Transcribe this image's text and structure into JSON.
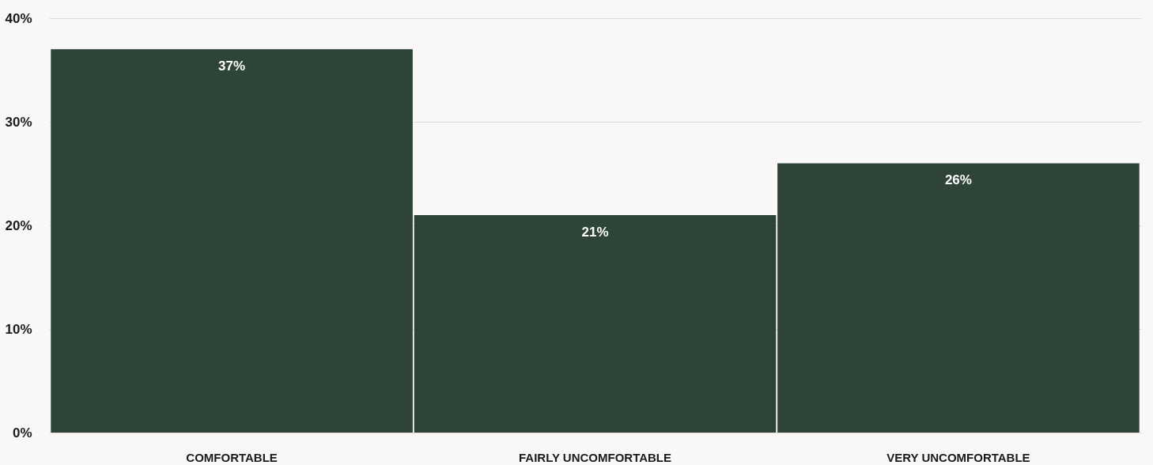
{
  "chart_data": {
    "type": "bar",
    "categories": [
      "COMFORTABLE",
      "FAIRLY UNCOMFORTABLE",
      "VERY UNCOMFORTABLE"
    ],
    "values": [
      37,
      21,
      26
    ],
    "color": "#2e4439",
    "value_labels": [
      "37%",
      "21%",
      "26%"
    ],
    "ylim": [
      0,
      40
    ],
    "yticks": [
      {
        "value": 0,
        "label": "0%"
      },
      {
        "value": 10,
        "label": "10%"
      },
      {
        "value": 20,
        "label": "20%"
      },
      {
        "value": 30,
        "label": "30%"
      },
      {
        "value": 40,
        "label": "40%"
      }
    ],
    "grid": "y"
  }
}
